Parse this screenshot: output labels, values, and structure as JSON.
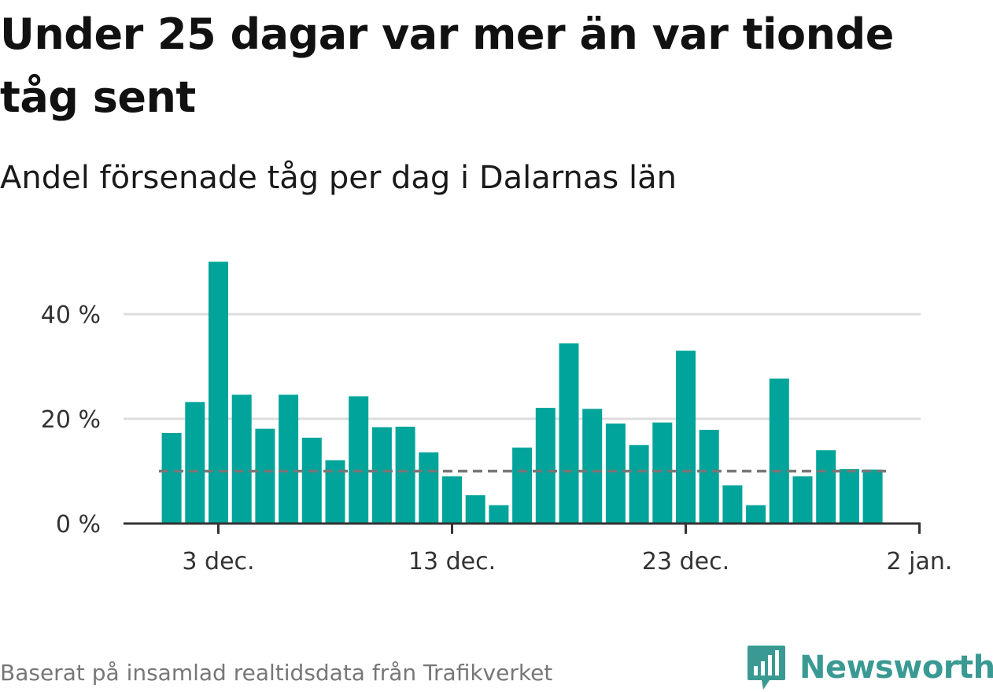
{
  "title": "Under 25 dagar var mer än var tionde tåg sent",
  "subtitle": "Andel försenade tåg per dag i Dalarnas län",
  "footer": "Baserat på insamlad realtidsdata från Trafikverket",
  "brand": {
    "name": "Newsworthy",
    "icon": "newsworthy-logo-icon"
  },
  "colors": {
    "bar": "#00a49a",
    "reference": "#777777",
    "grid": "#dddddd",
    "axis": "#333333",
    "brand": "#3a9a93"
  },
  "chart_data": {
    "type": "bar",
    "x": [
      "2023-12-01",
      "2023-12-02",
      "2023-12-03",
      "2023-12-04",
      "2023-12-05",
      "2023-12-06",
      "2023-12-07",
      "2023-12-08",
      "2023-12-09",
      "2023-12-10",
      "2023-12-11",
      "2023-12-12",
      "2023-12-13",
      "2023-12-14",
      "2023-12-15",
      "2023-12-16",
      "2023-12-17",
      "2023-12-18",
      "2023-12-19",
      "2023-12-20",
      "2023-12-21",
      "2023-12-22",
      "2023-12-23",
      "2023-12-24",
      "2023-12-25",
      "2023-12-26",
      "2023-12-27",
      "2023-12-28",
      "2023-12-29",
      "2023-12-30",
      "2023-12-31"
    ],
    "values": [
      17.3,
      23.2,
      50.0,
      24.6,
      18.1,
      24.6,
      16.4,
      12.1,
      24.3,
      18.4,
      18.5,
      13.6,
      9.0,
      5.4,
      3.5,
      14.5,
      22.1,
      34.4,
      21.9,
      19.1,
      15.0,
      19.3,
      33.0,
      17.9,
      7.3,
      3.5,
      27.7,
      9.0,
      14.0,
      10.4,
      10.3
    ],
    "reference_line": 10,
    "ylim": [
      0,
      50
    ],
    "yticks": [
      0,
      20,
      40
    ],
    "ytick_labels": [
      "0 %",
      "20 %",
      "40 %"
    ],
    "xticks": [
      "2023-12-03",
      "2023-12-13",
      "2023-12-23",
      "2024-01-02"
    ],
    "xtick_labels": [
      "3 dec.",
      "13 dec.",
      "23 dec.",
      "2 jan."
    ],
    "xlabel": "",
    "ylabel": "",
    "grid": true,
    "legend": "none"
  }
}
